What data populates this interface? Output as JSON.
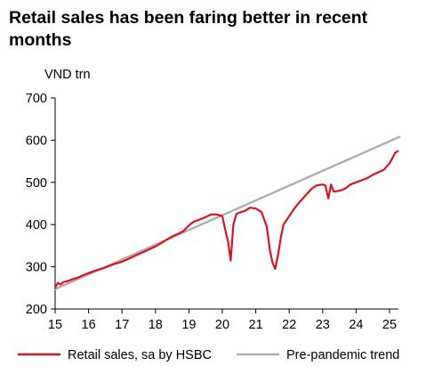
{
  "title": "Retail sales has been faring better in recent months",
  "ylabel": "VND trn",
  "colors": {
    "retail": "#d7141f",
    "trend": "#aeaeae",
    "axis": "#000000"
  },
  "chart_data": {
    "type": "line",
    "title": "Retail sales has been faring better in recent months",
    "xlabel": "",
    "ylabel": "VND trn",
    "ylim": [
      200,
      700
    ],
    "xlim": [
      15,
      25.4
    ],
    "y_ticks": [
      "200",
      "300",
      "400",
      "500",
      "600",
      "700"
    ],
    "x_ticks": [
      "15",
      "16",
      "17",
      "18",
      "19",
      "20",
      "21",
      "22",
      "23",
      "24",
      "25"
    ],
    "grid": false,
    "legend_position": "bottom",
    "series": [
      {
        "name": "Retail sales, sa by HSBC",
        "x": [
          15.0,
          15.08,
          15.17,
          15.25,
          15.33,
          15.5,
          15.67,
          15.83,
          16.0,
          16.17,
          16.33,
          16.5,
          16.67,
          16.83,
          17.0,
          17.17,
          17.33,
          17.5,
          17.67,
          17.83,
          18.0,
          18.17,
          18.33,
          18.5,
          18.67,
          18.83,
          19.0,
          19.17,
          19.33,
          19.5,
          19.67,
          19.83,
          20.0,
          20.08,
          20.17,
          20.25,
          20.33,
          20.42,
          20.5,
          20.67,
          20.83,
          21.0,
          21.17,
          21.33,
          21.42,
          21.5,
          21.58,
          21.67,
          21.75,
          21.83,
          22.0,
          22.17,
          22.33,
          22.5,
          22.67,
          22.83,
          23.0,
          23.08,
          23.17,
          23.25,
          23.33,
          23.5,
          23.67,
          23.83,
          24.0,
          24.17,
          24.33,
          24.5,
          24.67,
          24.83,
          25.0,
          25.17,
          25.25
        ],
        "values": [
          250,
          262,
          258,
          264,
          265,
          270,
          274,
          280,
          285,
          290,
          294,
          298,
          304,
          308,
          312,
          318,
          324,
          330,
          336,
          342,
          348,
          356,
          364,
          372,
          378,
          384,
          398,
          408,
          412,
          418,
          424,
          424,
          420,
          390,
          360,
          315,
          400,
          425,
          428,
          432,
          440,
          438,
          430,
          395,
          340,
          310,
          295,
          330,
          370,
          400,
          420,
          440,
          455,
          470,
          485,
          493,
          495,
          493,
          462,
          495,
          478,
          480,
          485,
          495,
          500,
          505,
          510,
          518,
          524,
          530,
          545,
          570,
          574
        ]
      },
      {
        "name": "Pre-pandemic trend",
        "x": [
          15.0,
          25.3
        ],
        "values": [
          247,
          608
        ]
      }
    ]
  },
  "legend": [
    {
      "label": "Retail sales, sa by HSBC"
    },
    {
      "label": "Pre-pandemic trend"
    }
  ]
}
